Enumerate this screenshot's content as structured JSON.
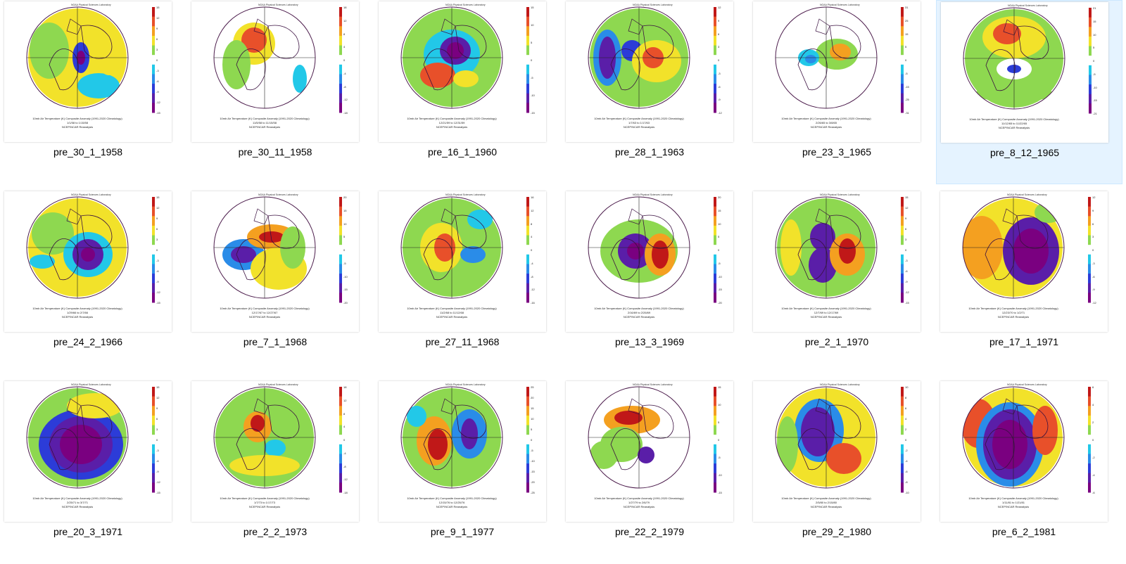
{
  "window": {
    "view": "Large icons"
  },
  "colors": {
    "selection_bg": "#e5f3ff",
    "palette": [
      "#7a0080",
      "#5a1ea8",
      "#2c3cd8",
      "#2a8ce8",
      "#22c8e8",
      "#ffffff",
      "#8ed850",
      "#f2e22a",
      "#f4a020",
      "#e8502a",
      "#c01818"
    ]
  },
  "thumbnail_common": {
    "caption_title": "10mb Air Temperature (K) Composite Anomaly (1991-2020 Climatology)",
    "source": "NCEP/NCAR Reanalysis",
    "lab": "NOAA Physical Sciences Laboratory"
  },
  "files": [
    {
      "name": "pre_30_1_1958",
      "dates": "1/1/58  to  1/15/58",
      "scale": [
        "15",
        "12",
        "9",
        "6",
        "3",
        "0",
        "-3",
        "-6",
        "-9",
        "-12",
        "-15"
      ],
      "selected": false
    },
    {
      "name": "pre_30_11_1958",
      "dates": "11/5/58  to  11/15/58",
      "scale": [
        "18",
        "12",
        "8",
        "4",
        "0",
        "-4",
        "-8",
        "-12",
        "-18"
      ],
      "selected": false
    },
    {
      "name": "pre_16_1_1960",
      "dates": "12/21/59  to  12/31/59",
      "scale": [
        "15",
        "10",
        "5",
        "0",
        "-5",
        "-10",
        "-15"
      ],
      "selected": false
    },
    {
      "name": "pre_28_1_1963",
      "dates": "1/7/63  to  1/17/63",
      "scale": [
        "12",
        "9",
        "6",
        "3",
        "0",
        "-3",
        "-6",
        "-9",
        "-12"
      ],
      "selected": false
    },
    {
      "name": "pre_23_3_1965",
      "dates": "2/26/65  to  3/8/65",
      "scale": [
        "31",
        "25",
        "15",
        "5",
        "0",
        "-5",
        "-15",
        "-25",
        "-31"
      ],
      "selected": false
    },
    {
      "name": "pre_8_12_1965",
      "dates": "11/12/65  to  11/22/65",
      "scale": [
        "21",
        "15",
        "10",
        "5",
        "0",
        "-5",
        "-10",
        "-15",
        "-21"
      ],
      "selected": true
    },
    {
      "name": "pre_24_2_1966",
      "dates": "1/29/66  to  2/7/66",
      "scale": [
        "15",
        "12",
        "9",
        "6",
        "3",
        "0",
        "-3",
        "-6",
        "-9",
        "-12",
        "-15"
      ],
      "selected": false
    },
    {
      "name": "pre_7_1_1968",
      "dates": "12/17/67  to  12/27/67",
      "scale": [
        "20",
        "15",
        "10",
        "5",
        "0",
        "-5",
        "-10",
        "-15",
        "-20"
      ],
      "selected": false
    },
    {
      "name": "pre_27_11_1968",
      "dates": "11/2/68  to  11/12/68",
      "scale": [
        "16",
        "12",
        "8",
        "4",
        "0",
        "-4",
        "-8",
        "-12",
        "-16"
      ],
      "selected": false
    },
    {
      "name": "pre_13_3_1969",
      "dates": "2/16/69  to  2/26/69",
      "scale": [
        "20",
        "15",
        "10",
        "5",
        "0",
        "-5",
        "-10",
        "-15",
        "-20"
      ],
      "selected": false
    },
    {
      "name": "pre_2_1_1970",
      "dates": "12/7/69  to  12/17/69",
      "scale": [
        "15",
        "12",
        "9",
        "6",
        "3",
        "0",
        "-3",
        "-6",
        "-9",
        "-12",
        "-15"
      ],
      "selected": false
    },
    {
      "name": "pre_17_1_1971",
      "dates": "12/23/70  to  1/2/71",
      "scale": [
        "12",
        "9",
        "6",
        "3",
        "0",
        "-3",
        "-6",
        "-9",
        "-12"
      ],
      "selected": false
    },
    {
      "name": "pre_20_3_1971",
      "dates": "2/25/71  to  3/7/71",
      "scale": [
        "15",
        "12",
        "9",
        "6",
        "3",
        "0",
        "-3",
        "-6",
        "-9",
        "-12",
        "-15"
      ],
      "selected": false
    },
    {
      "name": "pre_2_2_1973",
      "dates": "1/7/73  to  1/17/73",
      "scale": [
        "18",
        "12",
        "8",
        "4",
        "0",
        "-4",
        "-8",
        "-12",
        "-18"
      ],
      "selected": false
    },
    {
      "name": "pre_9_1_1977",
      "dates": "12/15/76  to  12/25/76",
      "scale": [
        "25",
        "20",
        "15",
        "10",
        "5",
        "0",
        "-5",
        "-10",
        "-15",
        "-20",
        "-25"
      ],
      "selected": false
    },
    {
      "name": "pre_22_2_1979",
      "dates": "1/27/79  to  2/6/79",
      "scale": [
        "15",
        "10",
        "5",
        "0",
        "-5",
        "-10",
        "-15"
      ],
      "selected": false
    },
    {
      "name": "pre_29_2_1980",
      "dates": "2/5/80  to  2/15/80",
      "scale": [
        "10",
        "8",
        "6",
        "4",
        "2",
        "0",
        "-2",
        "-4",
        "-6",
        "-8",
        "-10"
      ],
      "selected": false
    },
    {
      "name": "pre_6_2_1981",
      "dates": "1/11/81  to  1/21/81",
      "scale": [
        "6",
        "4",
        "2",
        "0",
        "-2",
        "-4",
        "-6"
      ],
      "selected": false
    }
  ]
}
